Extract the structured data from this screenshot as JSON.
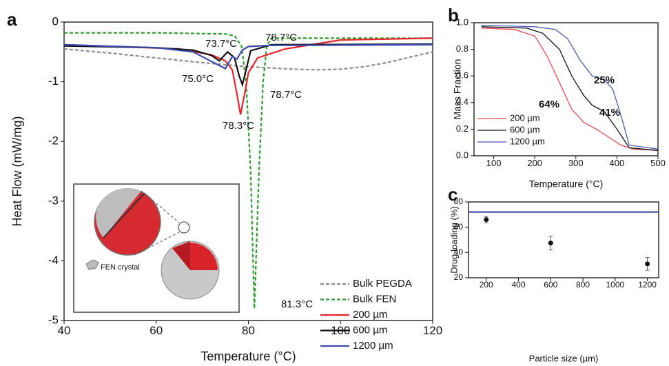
{
  "chart_data": [
    {
      "type": "line",
      "label": "a",
      "xlabel": "Temperature (°C)",
      "ylabel": "Heat Flow (mW/mg)",
      "xlim": [
        40,
        120
      ],
      "ylim": [
        -5,
        0
      ],
      "xticks": [
        40,
        60,
        80,
        100,
        120
      ],
      "yticks": [
        0,
        -1,
        -2,
        -3,
        -4,
        -5
      ],
      "legend": "lower right",
      "series": [
        {
          "name": "Bulk PEGDA",
          "color": "#8c8c8c",
          "dash": true,
          "x": [
            40,
            50,
            60,
            70,
            80,
            90,
            95,
            100,
            105,
            110,
            120
          ],
          "values": [
            -0.45,
            -0.52,
            -0.6,
            -0.68,
            -0.75,
            -0.79,
            -0.8,
            -0.79,
            -0.75,
            -0.68,
            -0.5
          ]
        },
        {
          "name": "Bulk FEN",
          "color": "#2ca02c",
          "dash": true,
          "x": [
            40,
            60,
            75,
            77,
            78.5,
            79.5,
            80.5,
            81.3,
            82.3,
            83.2,
            84,
            85,
            100,
            120
          ],
          "values": [
            -0.18,
            -0.18,
            -0.2,
            -0.23,
            -0.4,
            -1.0,
            -2.5,
            -4.8,
            -2.5,
            -1.0,
            -0.4,
            -0.27,
            -0.27,
            -0.27
          ]
        },
        {
          "name": "200 µm",
          "color": "#e8242b",
          "dash": false,
          "x": [
            40,
            55,
            65,
            72,
            75,
            76.5,
            77.5,
            78.3,
            79.2,
            80,
            82,
            88,
            100,
            120
          ],
          "values": [
            -0.38,
            -0.42,
            -0.45,
            -0.55,
            -0.65,
            -0.8,
            -1.2,
            -1.55,
            -1.2,
            -0.85,
            -0.6,
            -0.45,
            -0.3,
            -0.27
          ]
        },
        {
          "name": "600 µm",
          "color": "#111111",
          "dash": false,
          "x": [
            40,
            60,
            68,
            72,
            73.7,
            75.5,
            77,
            78,
            78.7,
            79.5,
            80.5,
            85,
            120
          ],
          "values": [
            -0.4,
            -0.43,
            -0.47,
            -0.56,
            -0.65,
            -0.5,
            -0.6,
            -0.9,
            -1.05,
            -0.8,
            -0.48,
            -0.38,
            -0.37
          ]
        },
        {
          "name": "1200 µm",
          "color": "#3a49b0",
          "dash": false,
          "x": [
            40,
            60,
            68,
            72,
            75,
            76.5,
            77.5,
            78.7,
            80,
            85,
            120
          ],
          "values": [
            -0.38,
            -0.43,
            -0.5,
            -0.66,
            -0.78,
            -0.58,
            -0.62,
            -0.47,
            -0.41,
            -0.39,
            -0.38
          ]
        }
      ],
      "annotations": [
        "73.7°C",
        "78.7°C",
        "75.0°C",
        "78.7°C",
        "78.3°C",
        "81.3°C"
      ],
      "inset_label": "FEN crystal"
    },
    {
      "type": "line",
      "label": "b",
      "xlabel": "Temperature (°C)",
      "ylabel": "Mass Fraction",
      "xlim": [
        52,
        500
      ],
      "ylim": [
        0,
        1
      ],
      "xticks": [
        100,
        200,
        300,
        400,
        500
      ],
      "yticks": [
        {
          "value": 0,
          "label": "0.0"
        },
        0.2,
        0.4,
        0.6,
        0.8,
        {
          "value": 1,
          "label": "1.0"
        }
      ],
      "legend": "lower left",
      "series": [
        {
          "name": "200 µm",
          "color": "#f0494e",
          "dash": false,
          "x": [
            70,
            150,
            200,
            230,
            260,
            290,
            320,
            350,
            380,
            410,
            440,
            500
          ],
          "values": [
            0.96,
            0.95,
            0.9,
            0.75,
            0.55,
            0.35,
            0.25,
            0.2,
            0.14,
            0.08,
            0.05,
            0.04
          ]
        },
        {
          "name": "600 µm",
          "color": "#111111",
          "dash": false,
          "x": [
            70,
            180,
            220,
            260,
            290,
            320,
            340,
            370,
            400,
            430,
            500
          ],
          "values": [
            0.97,
            0.96,
            0.92,
            0.8,
            0.6,
            0.45,
            0.38,
            0.33,
            0.2,
            0.06,
            0.04
          ]
        },
        {
          "name": "1200 µm",
          "color": "#4a58c0",
          "dash": false,
          "x": [
            70,
            200,
            250,
            280,
            310,
            340,
            370,
            390,
            410,
            430,
            500
          ],
          "values": [
            0.98,
            0.97,
            0.95,
            0.88,
            0.72,
            0.6,
            0.57,
            0.5,
            0.3,
            0.08,
            0.05
          ]
        }
      ],
      "annotations": [
        "64%",
        "41%",
        "25%"
      ]
    },
    {
      "type": "scatter",
      "label": "c",
      "xlabel": "Particle size (µm)",
      "ylabel": "Drug loading (%)",
      "xlim": [
        90,
        1270
      ],
      "ylim": [
        20,
        80
      ],
      "xticks": [
        200,
        400,
        600,
        800,
        1000,
        1200
      ],
      "yticks": [
        20,
        40,
        60,
        80
      ],
      "color": "#111111",
      "x": [
        200,
        600,
        1200
      ],
      "values": [
        66,
        47.5,
        31
      ],
      "errors": [
        2.5,
        5.5,
        5
      ],
      "reference_line": {
        "value": 72,
        "color": "#2e3f9e"
      }
    }
  ]
}
